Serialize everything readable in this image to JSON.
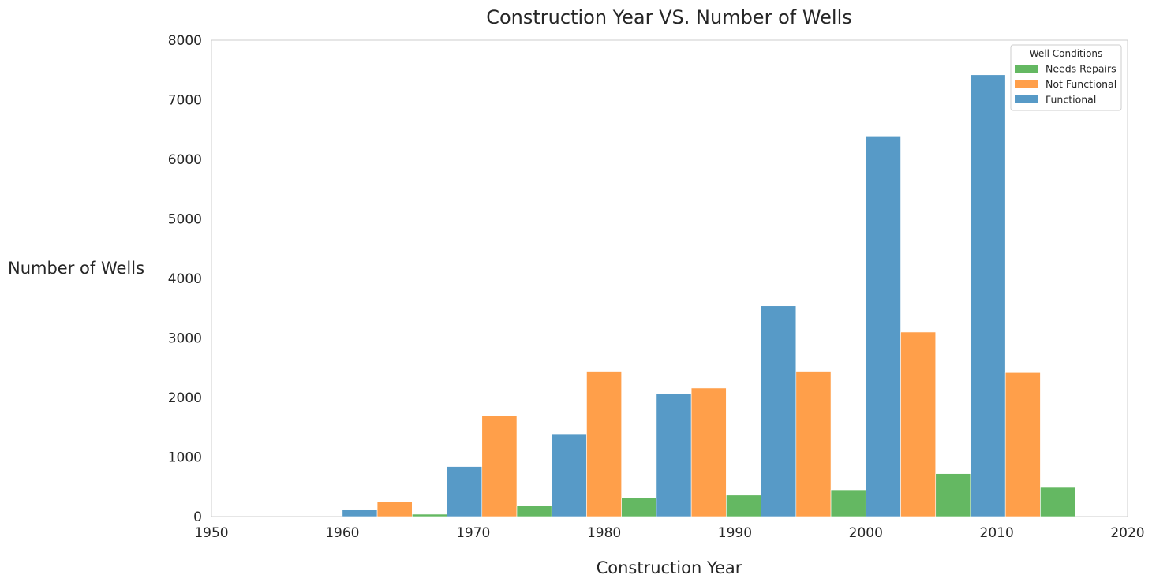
{
  "chart_data": {
    "type": "bar",
    "title": "Construction Year VS. Number of Wells",
    "xlabel": "Construction Year",
    "ylabel": "Number of Wells",
    "xlim": [
      1950,
      2020
    ],
    "ylim": [
      0,
      8000
    ],
    "x_ticks": [
      "1950",
      "1960",
      "1970",
      "1980",
      "1990",
      "2000",
      "2010",
      "2020"
    ],
    "y_ticks": [
      "0",
      "1000",
      "2000",
      "3000",
      "4000",
      "5000",
      "6000",
      "7000",
      "8000"
    ],
    "grid": false,
    "legend": {
      "title": "Well Conditions",
      "placement": "top-right"
    },
    "bins": [
      [
        1960,
        1968
      ],
      [
        1968,
        1976
      ],
      [
        1976,
        1984
      ],
      [
        1984,
        1992
      ],
      [
        1992,
        2000
      ],
      [
        2000,
        2008
      ],
      [
        2008,
        2016
      ]
    ],
    "series": [
      {
        "name": "Needs Repairs",
        "color": "#64b862",
        "values": [
          40,
          180,
          310,
          360,
          450,
          720,
          490
        ]
      },
      {
        "name": "Not Functional",
        "color": "#ff9f4a",
        "values": [
          250,
          1690,
          2430,
          2160,
          2430,
          3100,
          2420
        ]
      },
      {
        "name": "Functional",
        "color": "#579ac7",
        "values": [
          110,
          840,
          1390,
          2060,
          3540,
          6380,
          7420
        ]
      }
    ]
  }
}
